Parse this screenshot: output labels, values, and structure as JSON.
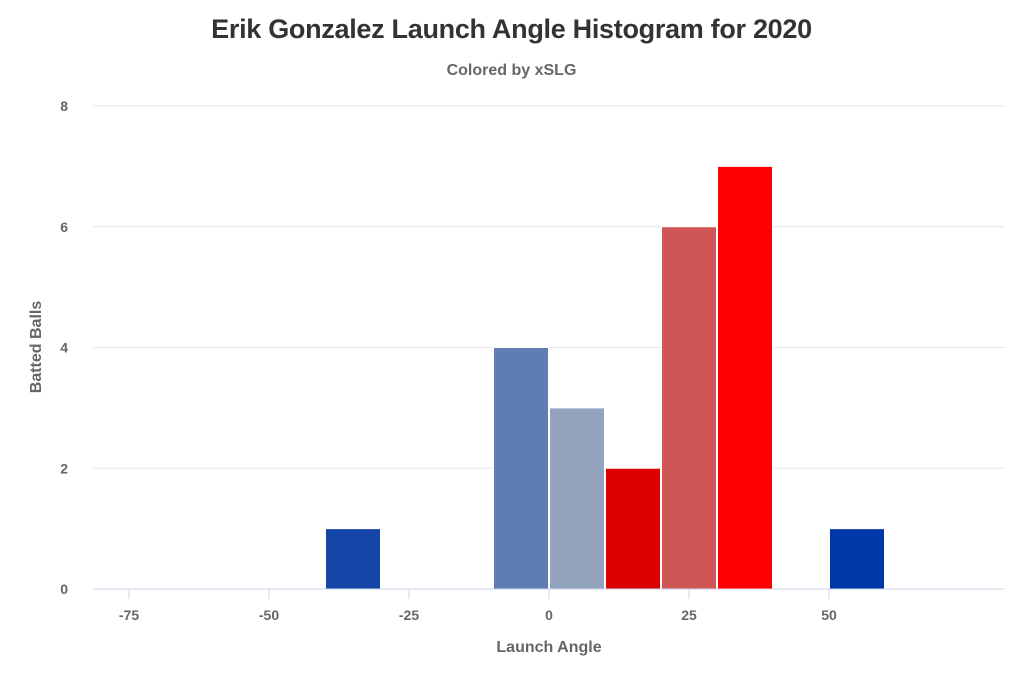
{
  "chart_data": {
    "type": "bar",
    "title": "Erik Gonzalez Launch Angle Histogram for 2020",
    "subtitle": "Colored by xSLG",
    "xlabel": "Launch Angle",
    "ylabel": "Batted Balls",
    "xlim": [
      -80,
      82
    ],
    "ylim": [
      0,
      8
    ],
    "x_ticks": [
      -75,
      -50,
      -25,
      0,
      25,
      50
    ],
    "y_ticks": [
      0,
      2,
      4,
      6,
      8
    ],
    "grid": true,
    "bin_width": 10,
    "bins": [
      {
        "x0": -40,
        "x1": -30,
        "count": 1,
        "color": "#1446a8"
      },
      {
        "x0": -10,
        "x1": 0,
        "count": 4,
        "color": "#5f7db3"
      },
      {
        "x0": 0,
        "x1": 10,
        "count": 3,
        "color": "#93a3bd"
      },
      {
        "x0": 10,
        "x1": 20,
        "count": 2,
        "color": "#dc0000"
      },
      {
        "x0": 20,
        "x1": 30,
        "count": 6,
        "color": "#d05557"
      },
      {
        "x0": 30,
        "x1": 40,
        "count": 7,
        "color": "#ff0000"
      },
      {
        "x0": 50,
        "x1": 60,
        "count": 1,
        "color": "#0037a8"
      }
    ]
  }
}
